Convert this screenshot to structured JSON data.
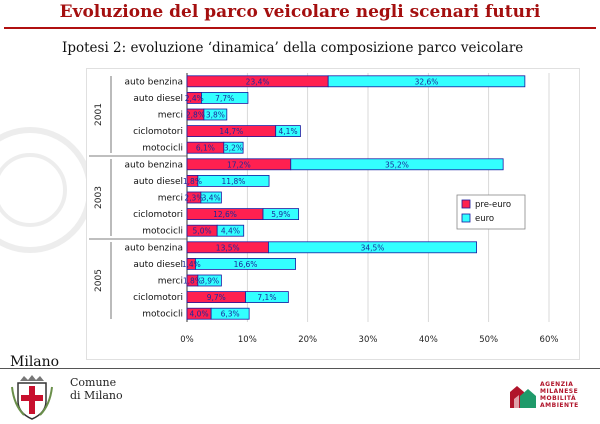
{
  "page": {
    "title": "Evoluzione del parco veicolare negli scenari futuri",
    "subtitle": "Ipotesi 2: evoluzione ‘dinamica’ della composizione parco veicolare"
  },
  "footer": {
    "city": "Milano",
    "comune_line1": "Comune",
    "comune_line2": "di Milano",
    "agency_lines": [
      "AGENZIA",
      "MILANESE",
      "MOBILITÀ",
      "AMBIENTE"
    ]
  },
  "colors": {
    "pre_euro": "#ff2050",
    "euro": "#33ffff",
    "title": "#a40f0f"
  },
  "chart_data": {
    "type": "bar",
    "orientation": "horizontal",
    "stacked": true,
    "x_ticks": [
      "0%",
      "10%",
      "20%",
      "30%",
      "40%",
      "50%",
      "60%"
    ],
    "xlim": [
      0,
      60
    ],
    "grid": true,
    "legend_position": "right",
    "groups": [
      {
        "label": "2001",
        "categories": [
          "auto benzina",
          "auto diesel",
          "merci",
          "ciclomotori",
          "motocicli"
        ],
        "pre_euro": [
          23.4,
          2.4,
          2.8,
          14.7,
          6.1
        ],
        "euro": [
          32.6,
          7.7,
          3.8,
          4.1,
          3.2
        ],
        "pre_euro_labels": [
          "23,4%",
          "2,4%",
          "2,8%",
          "14,7%",
          "6,1%"
        ],
        "euro_labels": [
          "32,6%",
          "7,7%",
          "3,8%",
          "4,1%",
          "3,2%"
        ]
      },
      {
        "label": "2003",
        "categories": [
          "auto benzina",
          "auto diesel",
          "merci",
          "ciclomotori",
          "motocicli"
        ],
        "pre_euro": [
          17.2,
          1.8,
          2.3,
          12.6,
          5.0
        ],
        "euro": [
          35.2,
          11.8,
          3.4,
          5.9,
          4.4
        ],
        "pre_euro_labels": [
          "17,2%",
          "1,8%",
          "2,3%",
          "12,6%",
          "5,0%"
        ],
        "euro_labels": [
          "35,2%",
          "11,8%",
          "3,4%",
          "5,9%",
          "4,4%"
        ]
      },
      {
        "label": "2005",
        "categories": [
          "auto benzina",
          "auto diesel",
          "merci",
          "ciclomotori",
          "motocicli"
        ],
        "pre_euro": [
          13.5,
          1.4,
          1.8,
          9.7,
          4.0
        ],
        "euro": [
          34.5,
          16.6,
          3.9,
          7.1,
          6.3
        ],
        "pre_euro_labels": [
          "13,5%",
          "1,4%",
          "1,8%",
          "9,7%",
          "4,0%"
        ],
        "euro_labels": [
          "34,5%",
          "16,6%",
          "3,9%",
          "7,1%",
          "6,3%"
        ]
      }
    ],
    "series": [
      {
        "name": "pre-euro"
      },
      {
        "name": "euro"
      }
    ]
  }
}
